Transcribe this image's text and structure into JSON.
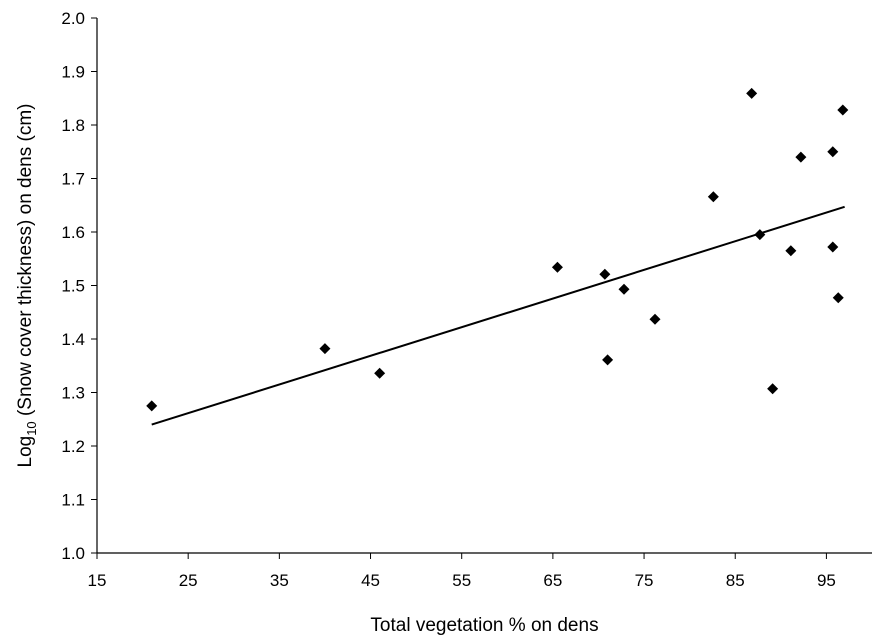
{
  "chart_data": {
    "type": "scatter",
    "title": "",
    "xlabel": "Total vegetation % on dens",
    "ylabel_parts": {
      "before": "Log",
      "subscript": "10",
      "after": " (Snow cover thickness) on dens (cm)"
    },
    "xlim": [
      15,
      100
    ],
    "ylim": [
      1.0,
      2.0
    ],
    "x_ticks": [
      15,
      25,
      35,
      45,
      55,
      65,
      75,
      85,
      95
    ],
    "y_ticks": [
      1.0,
      1.1,
      1.2,
      1.3,
      1.4,
      1.5,
      1.6,
      1.7,
      1.8,
      1.9,
      2.0
    ],
    "grid": false,
    "legend": "none",
    "marker": "diamond",
    "marker_color": "#000000",
    "points": [
      {
        "x": 21,
        "y": 1.275
      },
      {
        "x": 40,
        "y": 1.382
      },
      {
        "x": 46,
        "y": 1.336
      },
      {
        "x": 65.5,
        "y": 1.534
      },
      {
        "x": 70.7,
        "y": 1.521
      },
      {
        "x": 71,
        "y": 1.361
      },
      {
        "x": 72.8,
        "y": 1.493
      },
      {
        "x": 76.2,
        "y": 1.437
      },
      {
        "x": 82.6,
        "y": 1.666
      },
      {
        "x": 86.8,
        "y": 1.859
      },
      {
        "x": 87.7,
        "y": 1.595
      },
      {
        "x": 89.1,
        "y": 1.307
      },
      {
        "x": 91.1,
        "y": 1.565
      },
      {
        "x": 92.2,
        "y": 1.74
      },
      {
        "x": 95.7,
        "y": 1.75
      },
      {
        "x": 95.7,
        "y": 1.572
      },
      {
        "x": 96.3,
        "y": 1.477
      },
      {
        "x": 96.8,
        "y": 1.828
      }
    ],
    "trendline": {
      "type": "linear",
      "x_range": [
        21,
        97
      ],
      "y_values": [
        1.24,
        1.647
      ]
    }
  }
}
